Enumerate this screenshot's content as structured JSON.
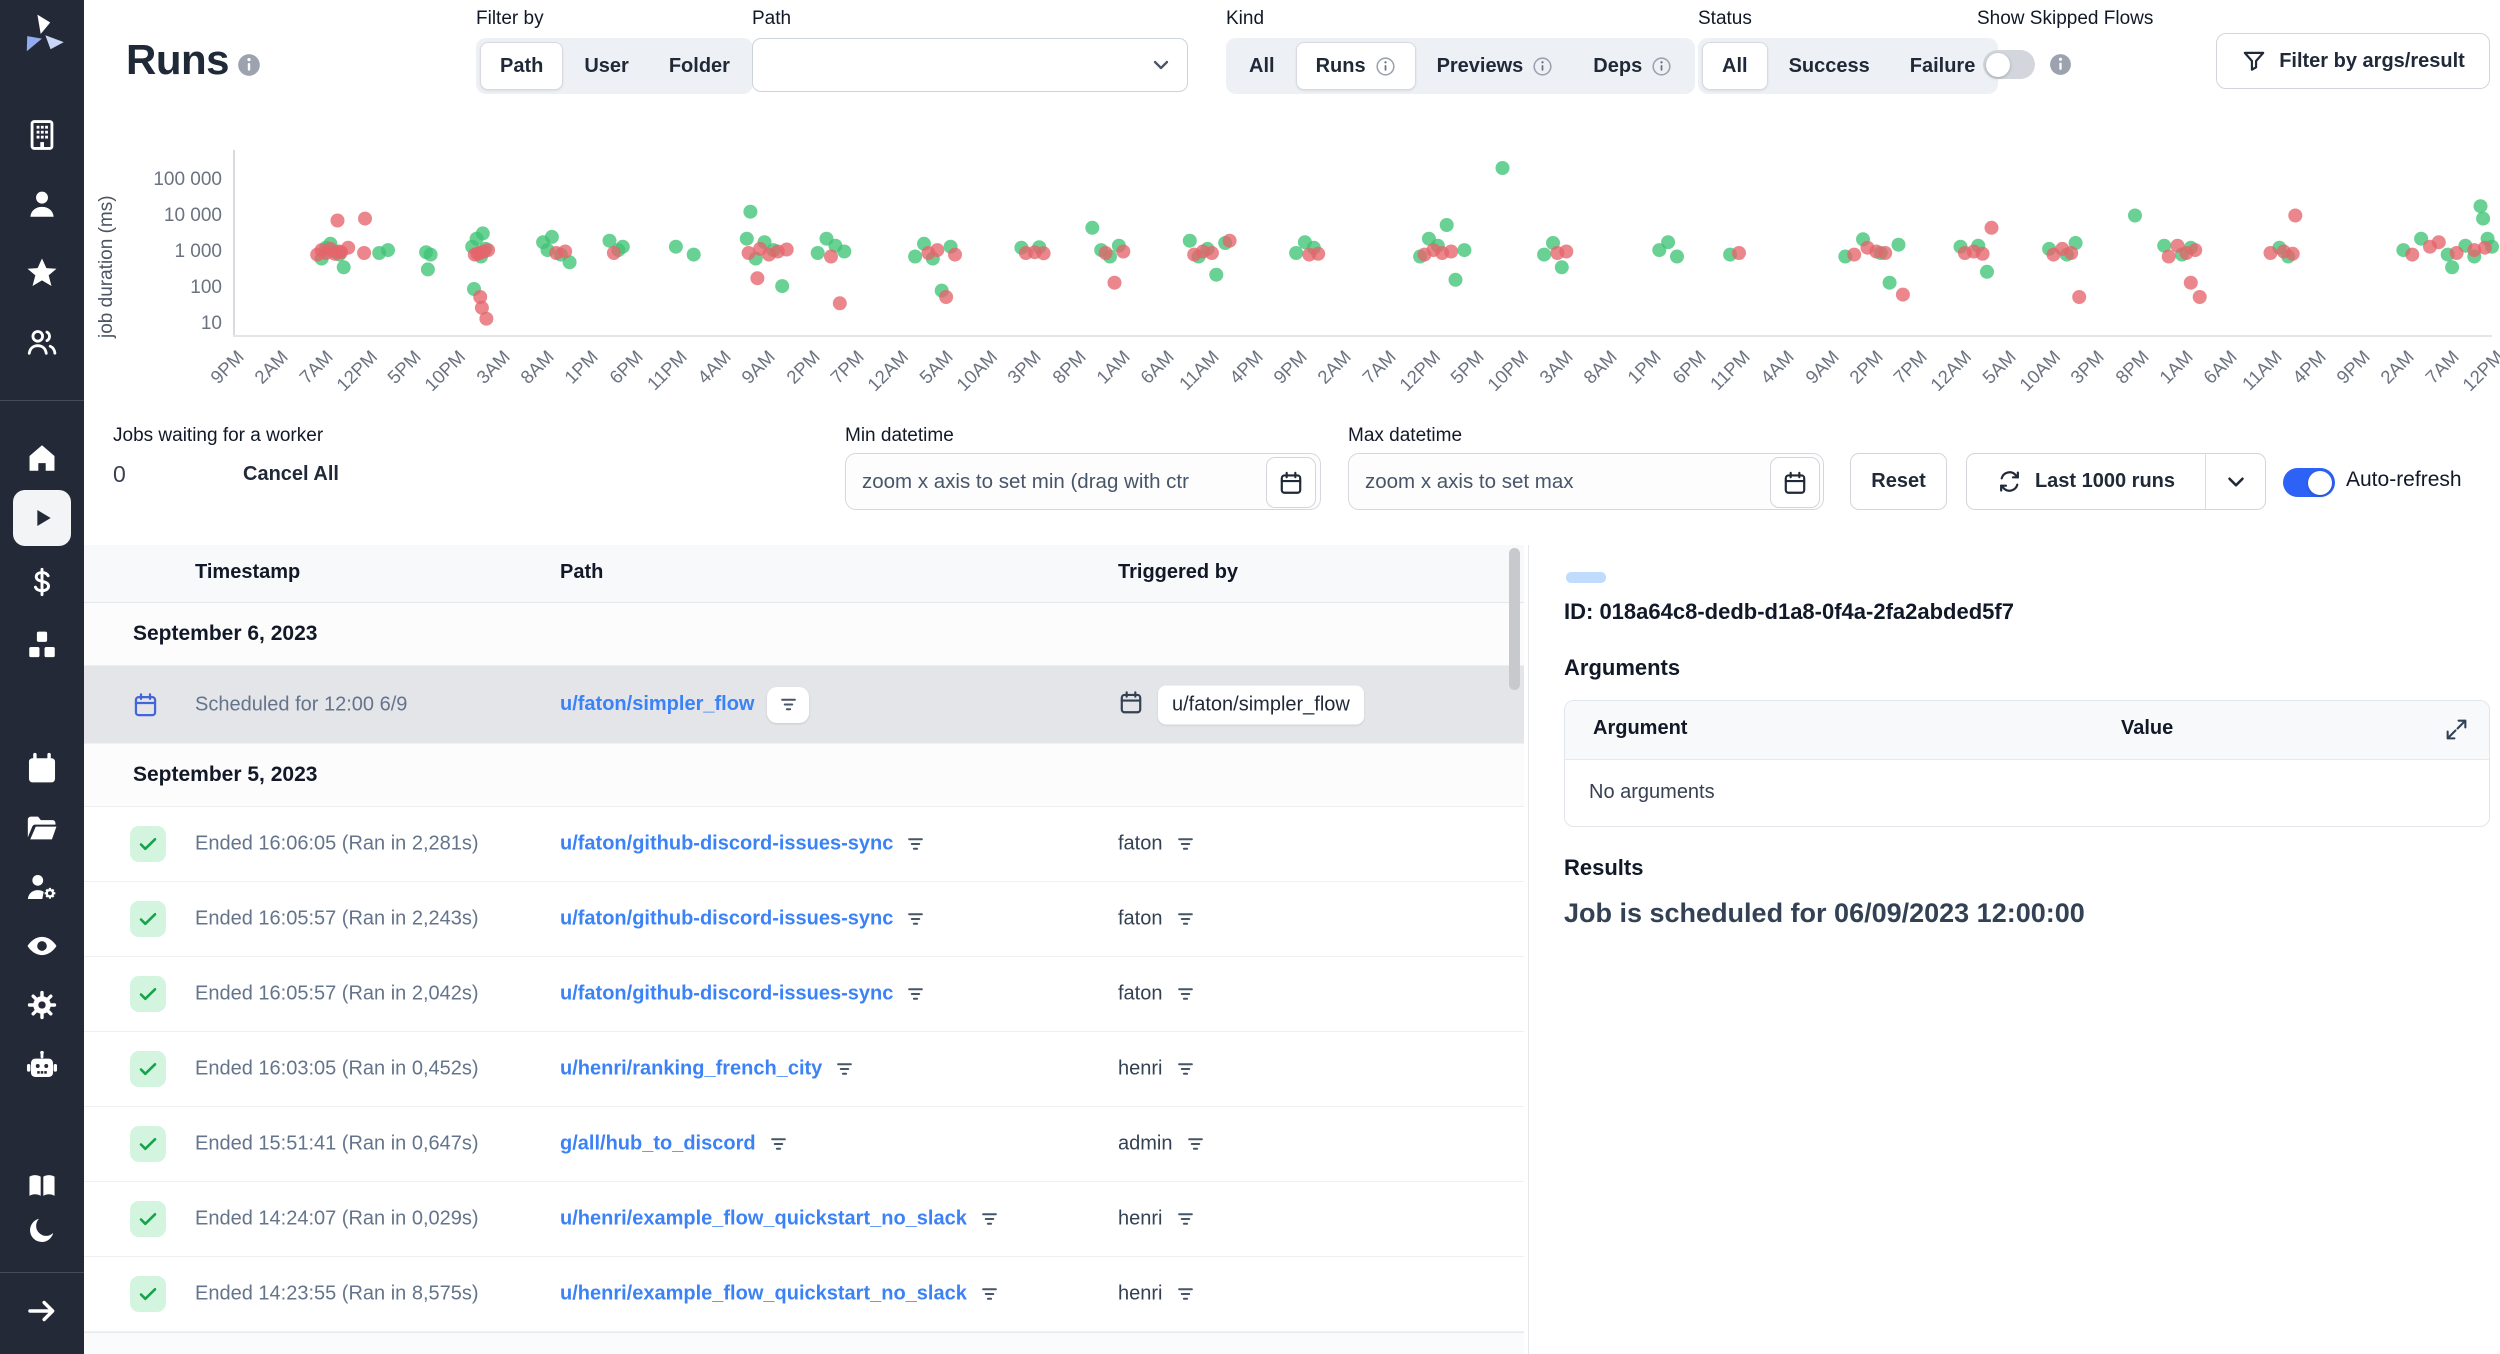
{
  "app": {
    "name": "Windmill"
  },
  "header": {
    "title": "Runs",
    "filter_by": {
      "label": "Filter by",
      "options": [
        "Path",
        "User",
        "Folder"
      ],
      "selected": "Path"
    },
    "path_select": {
      "label": "Path",
      "value": ""
    },
    "kind": {
      "label": "Kind",
      "options": [
        {
          "label": "All",
          "info": false
        },
        {
          "label": "Runs",
          "info": true
        },
        {
          "label": "Previews",
          "info": true
        },
        {
          "label": "Deps",
          "info": true
        }
      ],
      "selected": "Runs"
    },
    "status": {
      "label": "Status",
      "options": [
        {
          "label": "All",
          "info": false
        },
        {
          "label": "Success",
          "info": false
        },
        {
          "label": "Failure",
          "info": false
        }
      ],
      "selected": "All"
    },
    "show_skipped": {
      "label": "Show Skipped Flows",
      "enabled": false
    },
    "filter_args_button": "Filter by args/result"
  },
  "chart_data": {
    "type": "scatter",
    "title": "",
    "ylabel": "job duration (ms)",
    "y_scale": "log",
    "y_ticks": [
      "100 000",
      "10 000",
      "1 000",
      "100",
      "10"
    ],
    "y_tick_values": [
      100000,
      10000,
      1000,
      100,
      10
    ],
    "x_unit": "hours, 5h per tick",
    "x_ticks": [
      "9PM",
      "2AM",
      "7AM",
      "12PM",
      "5PM",
      "10PM",
      "3AM",
      "8AM",
      "1PM",
      "6PM",
      "11PM",
      "4AM",
      "9AM",
      "2PM",
      "7PM",
      "12AM",
      "5AM",
      "10AM",
      "3PM",
      "8PM",
      "1AM",
      "6AM",
      "11AM",
      "4PM",
      "9PM",
      "2AM",
      "7AM",
      "12PM",
      "5PM",
      "10PM",
      "3AM",
      "8AM",
      "1PM",
      "6PM",
      "11PM",
      "4AM",
      "9AM",
      "2PM",
      "7PM",
      "12AM",
      "5AM",
      "10AM",
      "3PM",
      "8PM",
      "1AM",
      "6AM",
      "11AM",
      "4PM",
      "9PM",
      "2AM",
      "7AM",
      "12PM"
    ],
    "legend": "off",
    "series": [
      {
        "name": "success",
        "color": "#3fc476",
        "points": [
          [
            10,
            700
          ],
          [
            10.5,
            1400
          ],
          [
            11,
            1800
          ],
          [
            11.5,
            1100
          ],
          [
            12,
            900
          ],
          [
            12.5,
            400
          ],
          [
            16.5,
            1000
          ],
          [
            17.5,
            1200
          ],
          [
            21.8,
            1050
          ],
          [
            22.3,
            900
          ],
          [
            22,
            350
          ],
          [
            27,
            1500
          ],
          [
            27.5,
            2500
          ],
          [
            28,
            800
          ],
          [
            28.5,
            1300
          ],
          [
            27.2,
            100
          ],
          [
            28.2,
            3500
          ],
          [
            35,
            2000
          ],
          [
            35.5,
            1200
          ],
          [
            36,
            2800
          ],
          [
            37,
            900
          ],
          [
            38,
            550
          ],
          [
            42.5,
            2200
          ],
          [
            43.5,
            1200
          ],
          [
            44,
            1500
          ],
          [
            50,
            1500
          ],
          [
            52,
            900
          ],
          [
            58,
            2500
          ],
          [
            58.4,
            14000
          ],
          [
            59,
            700
          ],
          [
            60,
            2000
          ],
          [
            61,
            1200
          ],
          [
            62,
            120
          ],
          [
            66,
            1000
          ],
          [
            67,
            2500
          ],
          [
            68,
            1600
          ],
          [
            69,
            1100
          ],
          [
            77,
            800
          ],
          [
            78,
            1800
          ],
          [
            79,
            700
          ],
          [
            80,
            90
          ],
          [
            81,
            1500
          ],
          [
            89,
            1400
          ],
          [
            91,
            1450
          ],
          [
            97,
            5000
          ],
          [
            98,
            1200
          ],
          [
            99,
            800
          ],
          [
            100,
            1600
          ],
          [
            108,
            2200
          ],
          [
            109,
            800
          ],
          [
            110,
            1300
          ],
          [
            111,
            250
          ],
          [
            112,
            1900
          ],
          [
            120,
            1000
          ],
          [
            121,
            2000
          ],
          [
            122,
            1400
          ],
          [
            134,
            800
          ],
          [
            135,
            2500
          ],
          [
            136,
            1600
          ],
          [
            137,
            6000
          ],
          [
            138,
            180
          ],
          [
            139,
            1200
          ],
          [
            143.3,
            230000
          ],
          [
            148,
            900
          ],
          [
            149,
            1900
          ],
          [
            150,
            400
          ],
          [
            161,
            1200
          ],
          [
            162,
            2000
          ],
          [
            163,
            800
          ],
          [
            169,
            900
          ],
          [
            182,
            800
          ],
          [
            184,
            2400
          ],
          [
            186,
            1000
          ],
          [
            187,
            150
          ],
          [
            188,
            1700
          ],
          [
            195,
            1500
          ],
          [
            197,
            1600
          ],
          [
            198,
            300
          ],
          [
            205,
            1300
          ],
          [
            207,
            900
          ],
          [
            208,
            1900
          ],
          [
            214.7,
            11000
          ],
          [
            218,
            1600
          ],
          [
            220,
            900
          ],
          [
            221,
            1400
          ],
          [
            231,
            1400
          ],
          [
            232,
            800
          ],
          [
            245,
            1200
          ],
          [
            247,
            2500
          ],
          [
            250,
            900
          ],
          [
            250.5,
            400
          ],
          [
            252,
            1600
          ],
          [
            253,
            800
          ],
          [
            253.7,
            20000
          ],
          [
            254,
            9000
          ],
          [
            254.5,
            2500
          ],
          [
            255,
            1500
          ]
        ]
      },
      {
        "name": "failure",
        "color": "#e5646c",
        "points": [
          [
            9.5,
            900
          ],
          [
            10,
            1200
          ],
          [
            10.5,
            1000
          ],
          [
            11,
            1300
          ],
          [
            11.5,
            950
          ],
          [
            11.8,
            8000
          ],
          [
            12,
            1100
          ],
          [
            12.2,
            1050
          ],
          [
            13,
            1400
          ],
          [
            14.8,
            1000
          ],
          [
            14.9,
            9000
          ],
          [
            27.3,
            900
          ],
          [
            27.6,
            950
          ],
          [
            27.8,
            1000
          ],
          [
            27.9,
            60
          ],
          [
            28.1,
            30
          ],
          [
            28.3,
            1100
          ],
          [
            28.6,
            15
          ],
          [
            28.8,
            1200
          ],
          [
            36.5,
            1000
          ],
          [
            37.5,
            1100
          ],
          [
            43,
            1000
          ],
          [
            58.2,
            1000
          ],
          [
            59.2,
            200
          ],
          [
            59.5,
            1300
          ],
          [
            60.5,
            900
          ],
          [
            61.5,
            1100
          ],
          [
            62.5,
            1250
          ],
          [
            67.5,
            800
          ],
          [
            68.5,
            40
          ],
          [
            78.5,
            1000
          ],
          [
            79.5,
            1200
          ],
          [
            80.5,
            60
          ],
          [
            81.5,
            900
          ],
          [
            89.5,
            1000
          ],
          [
            90.5,
            1050
          ],
          [
            91.5,
            980
          ],
          [
            98.5,
            1000
          ],
          [
            99.5,
            150
          ],
          [
            100.5,
            1100
          ],
          [
            108.5,
            900
          ],
          [
            109.5,
            1100
          ],
          [
            110.5,
            1000
          ],
          [
            112.5,
            2200
          ],
          [
            121.5,
            900
          ],
          [
            122.5,
            950
          ],
          [
            134.5,
            900
          ],
          [
            135.5,
            1200
          ],
          [
            136.5,
            1000
          ],
          [
            137.5,
            1100
          ],
          [
            149.5,
            1000
          ],
          [
            150.5,
            1100
          ],
          [
            170,
            1000
          ],
          [
            183,
            900
          ],
          [
            184.5,
            1400
          ],
          [
            185.5,
            1100
          ],
          [
            186.5,
            1000
          ],
          [
            188.5,
            70
          ],
          [
            195.5,
            1000
          ],
          [
            196.5,
            1100
          ],
          [
            197.5,
            950
          ],
          [
            198.5,
            5000
          ],
          [
            205.5,
            900
          ],
          [
            206.5,
            1300
          ],
          [
            207.5,
            1000
          ],
          [
            208.4,
            60
          ],
          [
            218.5,
            800
          ],
          [
            219.5,
            1600
          ],
          [
            220.5,
            1000
          ],
          [
            221.5,
            1200
          ],
          [
            221,
            150
          ],
          [
            222,
            60
          ],
          [
            230,
            1000
          ],
          [
            231.5,
            1100
          ],
          [
            232.5,
            950
          ],
          [
            232.8,
            11000
          ],
          [
            246,
            900
          ],
          [
            248,
            1500
          ],
          [
            249,
            2000
          ],
          [
            251,
            1000
          ],
          [
            253,
            1200
          ],
          [
            254.2,
            1400
          ]
        ]
      }
    ]
  },
  "queue": {
    "label": "Jobs waiting for a worker",
    "count": "0",
    "cancel_all": "Cancel All"
  },
  "controls": {
    "min_datetime": {
      "label": "Min datetime",
      "placeholder": "zoom x axis to set min (drag with ctr"
    },
    "max_datetime": {
      "label": "Max datetime",
      "placeholder": "zoom x axis to set max"
    },
    "reset": "Reset",
    "runs_select": "Last 1000 runs",
    "auto_refresh": {
      "label": "Auto-refresh",
      "enabled": true
    }
  },
  "table": {
    "columns": [
      "Timestamp",
      "Path",
      "Triggered by"
    ],
    "groups": [
      {
        "date": "September 6, 2023",
        "rows": [
          {
            "status": "scheduled",
            "selected": true,
            "timestamp": "Scheduled for 12:00 6/9",
            "path": "u/faton/simpler_flow",
            "triggered_by": "u/faton/simpler_flow",
            "triggered_by_badge": true
          }
        ]
      },
      {
        "date": "September 5, 2023",
        "rows": [
          {
            "status": "success",
            "selected": false,
            "timestamp": "Ended 16:06:05 (Ran in 2,281s)",
            "path": "u/faton/github-discord-issues-sync",
            "triggered_by": "faton",
            "triggered_by_badge": false
          },
          {
            "status": "success",
            "selected": false,
            "timestamp": "Ended 16:05:57 (Ran in 2,243s)",
            "path": "u/faton/github-discord-issues-sync",
            "triggered_by": "faton",
            "triggered_by_badge": false
          },
          {
            "status": "success",
            "selected": false,
            "timestamp": "Ended 16:05:57 (Ran in 2,042s)",
            "path": "u/faton/github-discord-issues-sync",
            "triggered_by": "faton",
            "triggered_by_badge": false
          },
          {
            "status": "success",
            "selected": false,
            "timestamp": "Ended 16:03:05 (Ran in 0,452s)",
            "path": "u/henri/ranking_french_city",
            "triggered_by": "henri",
            "triggered_by_badge": false
          },
          {
            "status": "success",
            "selected": false,
            "timestamp": "Ended 15:51:41 (Ran in 0,647s)",
            "path": "g/all/hub_to_discord",
            "triggered_by": "admin",
            "triggered_by_badge": false
          },
          {
            "status": "success",
            "selected": false,
            "timestamp": "Ended 14:24:07 (Ran in 0,029s)",
            "path": "u/henri/example_flow_quickstart_no_slack",
            "triggered_by": "henri",
            "triggered_by_badge": false
          },
          {
            "status": "success",
            "selected": false,
            "timestamp": "Ended 14:23:55 (Ran in 8,575s)",
            "path": "u/henri/example_flow_quickstart_no_slack",
            "triggered_by": "henri",
            "triggered_by_badge": false
          }
        ]
      }
    ]
  },
  "detail": {
    "id": "ID: 018a64c8-dedb-d1a8-0f4a-2fa2abded5f7",
    "arguments": {
      "title": "Arguments",
      "columns": [
        "Argument",
        "Value"
      ],
      "empty": "No arguments"
    },
    "results": {
      "title": "Results",
      "message": "Job is scheduled for 06/09/2023 12:00:00"
    }
  },
  "icons": {
    "sidebar": [
      "windmill-logo",
      "building",
      "user",
      "star",
      "user-group",
      "home",
      "play",
      "dollar",
      "boxes",
      "calendar",
      "folder-open",
      "user-cog",
      "eye",
      "settings-gear",
      "robot",
      "book",
      "moon",
      "arrow-right"
    ],
    "other": [
      "info",
      "chevron-down",
      "funnel",
      "refresh",
      "calendar",
      "filter-bars",
      "check",
      "maximize"
    ]
  },
  "colors": {
    "sidebar_bg": "#232936",
    "link": "#3b82f6",
    "toggle_on": "#2e62f6",
    "success_point": "#3fc476",
    "failure_point": "#e5646c",
    "selected_row_bg": "#e3e5e9"
  }
}
